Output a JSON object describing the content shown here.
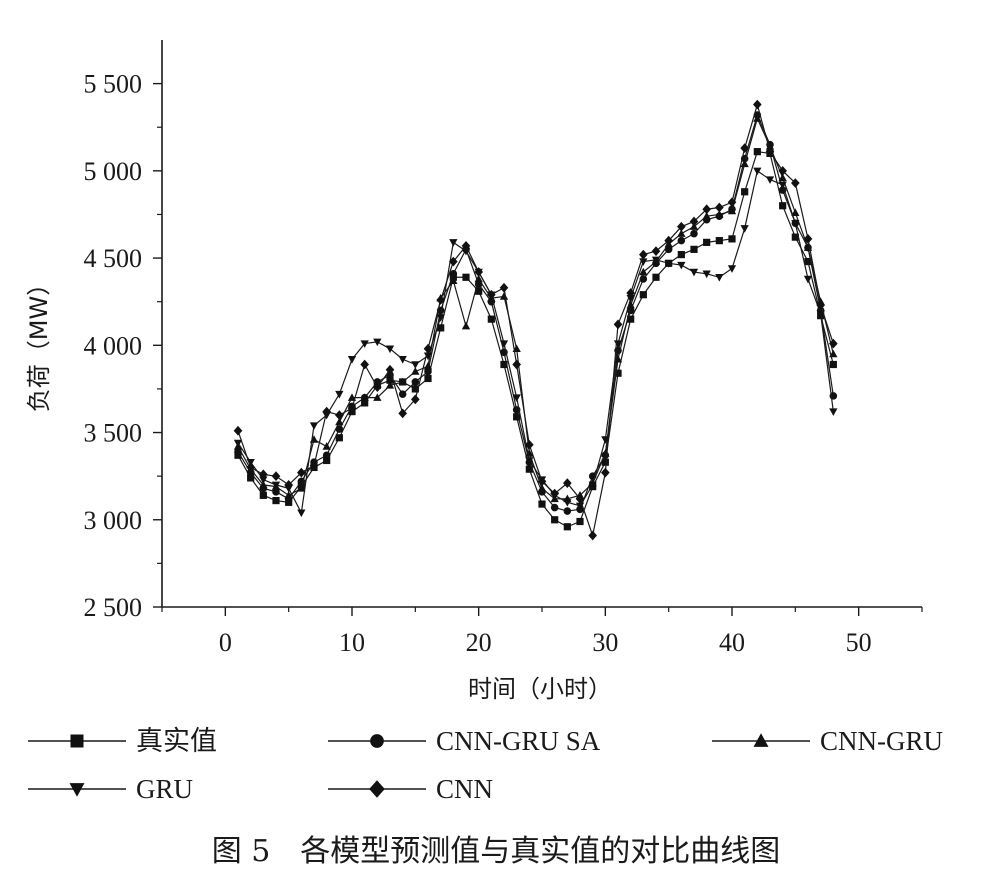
{
  "chart_data": {
    "type": "line",
    "xlabel": "时间（小时）",
    "ylabel": "负荷（MW）",
    "caption": "图 5　各模型预测值与真实值的对比曲线图",
    "xlim": [
      -5,
      55
    ],
    "ylim": [
      2500,
      5750
    ],
    "x_ticks": [
      0,
      10,
      20,
      30,
      40,
      50
    ],
    "x_tick_labels": [
      "0",
      "10",
      "20",
      "30",
      "40",
      "50"
    ],
    "y_ticks": [
      2500,
      3000,
      3500,
      4000,
      4500,
      5000,
      5500
    ],
    "y_tick_labels": [
      "2 500",
      "3 000",
      "3 500",
      "4 000",
      "4 500",
      "5 000",
      "5 500"
    ],
    "grid": false,
    "legend_position": "bottom",
    "x": [
      1,
      2,
      3,
      4,
      5,
      6,
      7,
      8,
      9,
      10,
      11,
      12,
      13,
      14,
      15,
      16,
      17,
      18,
      19,
      20,
      21,
      22,
      23,
      24,
      25,
      26,
      27,
      28,
      29,
      30,
      31,
      32,
      33,
      34,
      35,
      36,
      37,
      38,
      39,
      40,
      41,
      42,
      43,
      44,
      45,
      46,
      47,
      48
    ],
    "series": [
      {
        "name": "真实值",
        "marker": "square",
        "values": [
          3370,
          3240,
          3140,
          3110,
          3100,
          3190,
          3300,
          3340,
          3470,
          3620,
          3670,
          3770,
          3800,
          3790,
          3750,
          3810,
          4100,
          4390,
          4390,
          4310,
          4150,
          3890,
          3590,
          3290,
          3090,
          3000,
          2960,
          2990,
          3190,
          3330,
          3840,
          4150,
          4290,
          4390,
          4470,
          4520,
          4550,
          4590,
          4600,
          4610,
          4880,
          5110,
          5100,
          4800,
          4620,
          4480,
          4170,
          3890
        ]
      },
      {
        "name": "CNN-GRU SA",
        "marker": "circle",
        "values": [
          3390,
          3270,
          3180,
          3160,
          3120,
          3220,
          3330,
          3370,
          3520,
          3650,
          3700,
          3790,
          3830,
          3720,
          3790,
          3850,
          4200,
          4410,
          4550,
          4350,
          4250,
          3960,
          3630,
          3330,
          3160,
          3070,
          3050,
          3060,
          3250,
          3370,
          3970,
          4200,
          4380,
          4470,
          4550,
          4600,
          4640,
          4720,
          4740,
          4780,
          5070,
          5320,
          5150,
          4890,
          4700,
          4560,
          4200,
          3710
        ]
      },
      {
        "name": "CNN-GRU",
        "marker": "triangle-up",
        "values": [
          3420,
          3290,
          3200,
          3190,
          3140,
          3180,
          3460,
          3420,
          3560,
          3700,
          3700,
          3700,
          3770,
          3790,
          3850,
          3880,
          4270,
          4370,
          4110,
          4380,
          4270,
          4280,
          3980,
          3380,
          3180,
          3120,
          3120,
          3140,
          3210,
          3380,
          3920,
          4230,
          4420,
          4480,
          4580,
          4640,
          4680,
          4740,
          4750,
          4770,
          5040,
          5300,
          5140,
          4960,
          4760,
          4560,
          4250,
          3950
        ]
      },
      {
        "name": "GRU",
        "marker": "triangle-down",
        "values": [
          3440,
          3330,
          3230,
          3200,
          3180,
          3040,
          3540,
          3600,
          3720,
          3920,
          4010,
          4020,
          3980,
          3920,
          3890,
          3940,
          4160,
          4590,
          4540,
          4420,
          4290,
          4010,
          3700,
          3340,
          3230,
          3140,
          3100,
          3080,
          3200,
          3460,
          4010,
          4270,
          4480,
          4490,
          4470,
          4460,
          4420,
          4410,
          4390,
          4440,
          4670,
          5000,
          4950,
          4920,
          4700,
          4380,
          4180,
          3620
        ]
      },
      {
        "name": "CNN",
        "marker": "diamond",
        "values": [
          3510,
          3300,
          3260,
          3250,
          3200,
          3270,
          3310,
          3620,
          3600,
          3640,
          3890,
          3760,
          3860,
          3610,
          3690,
          3980,
          4260,
          4480,
          4570,
          4420,
          4290,
          4330,
          3890,
          3430,
          3220,
          3150,
          3210,
          3120,
          2910,
          3270,
          4120,
          4300,
          4520,
          4540,
          4600,
          4680,
          4710,
          4780,
          4790,
          4820,
          5130,
          5380,
          5110,
          5000,
          4930,
          4610,
          4230,
          4010
        ]
      }
    ]
  }
}
